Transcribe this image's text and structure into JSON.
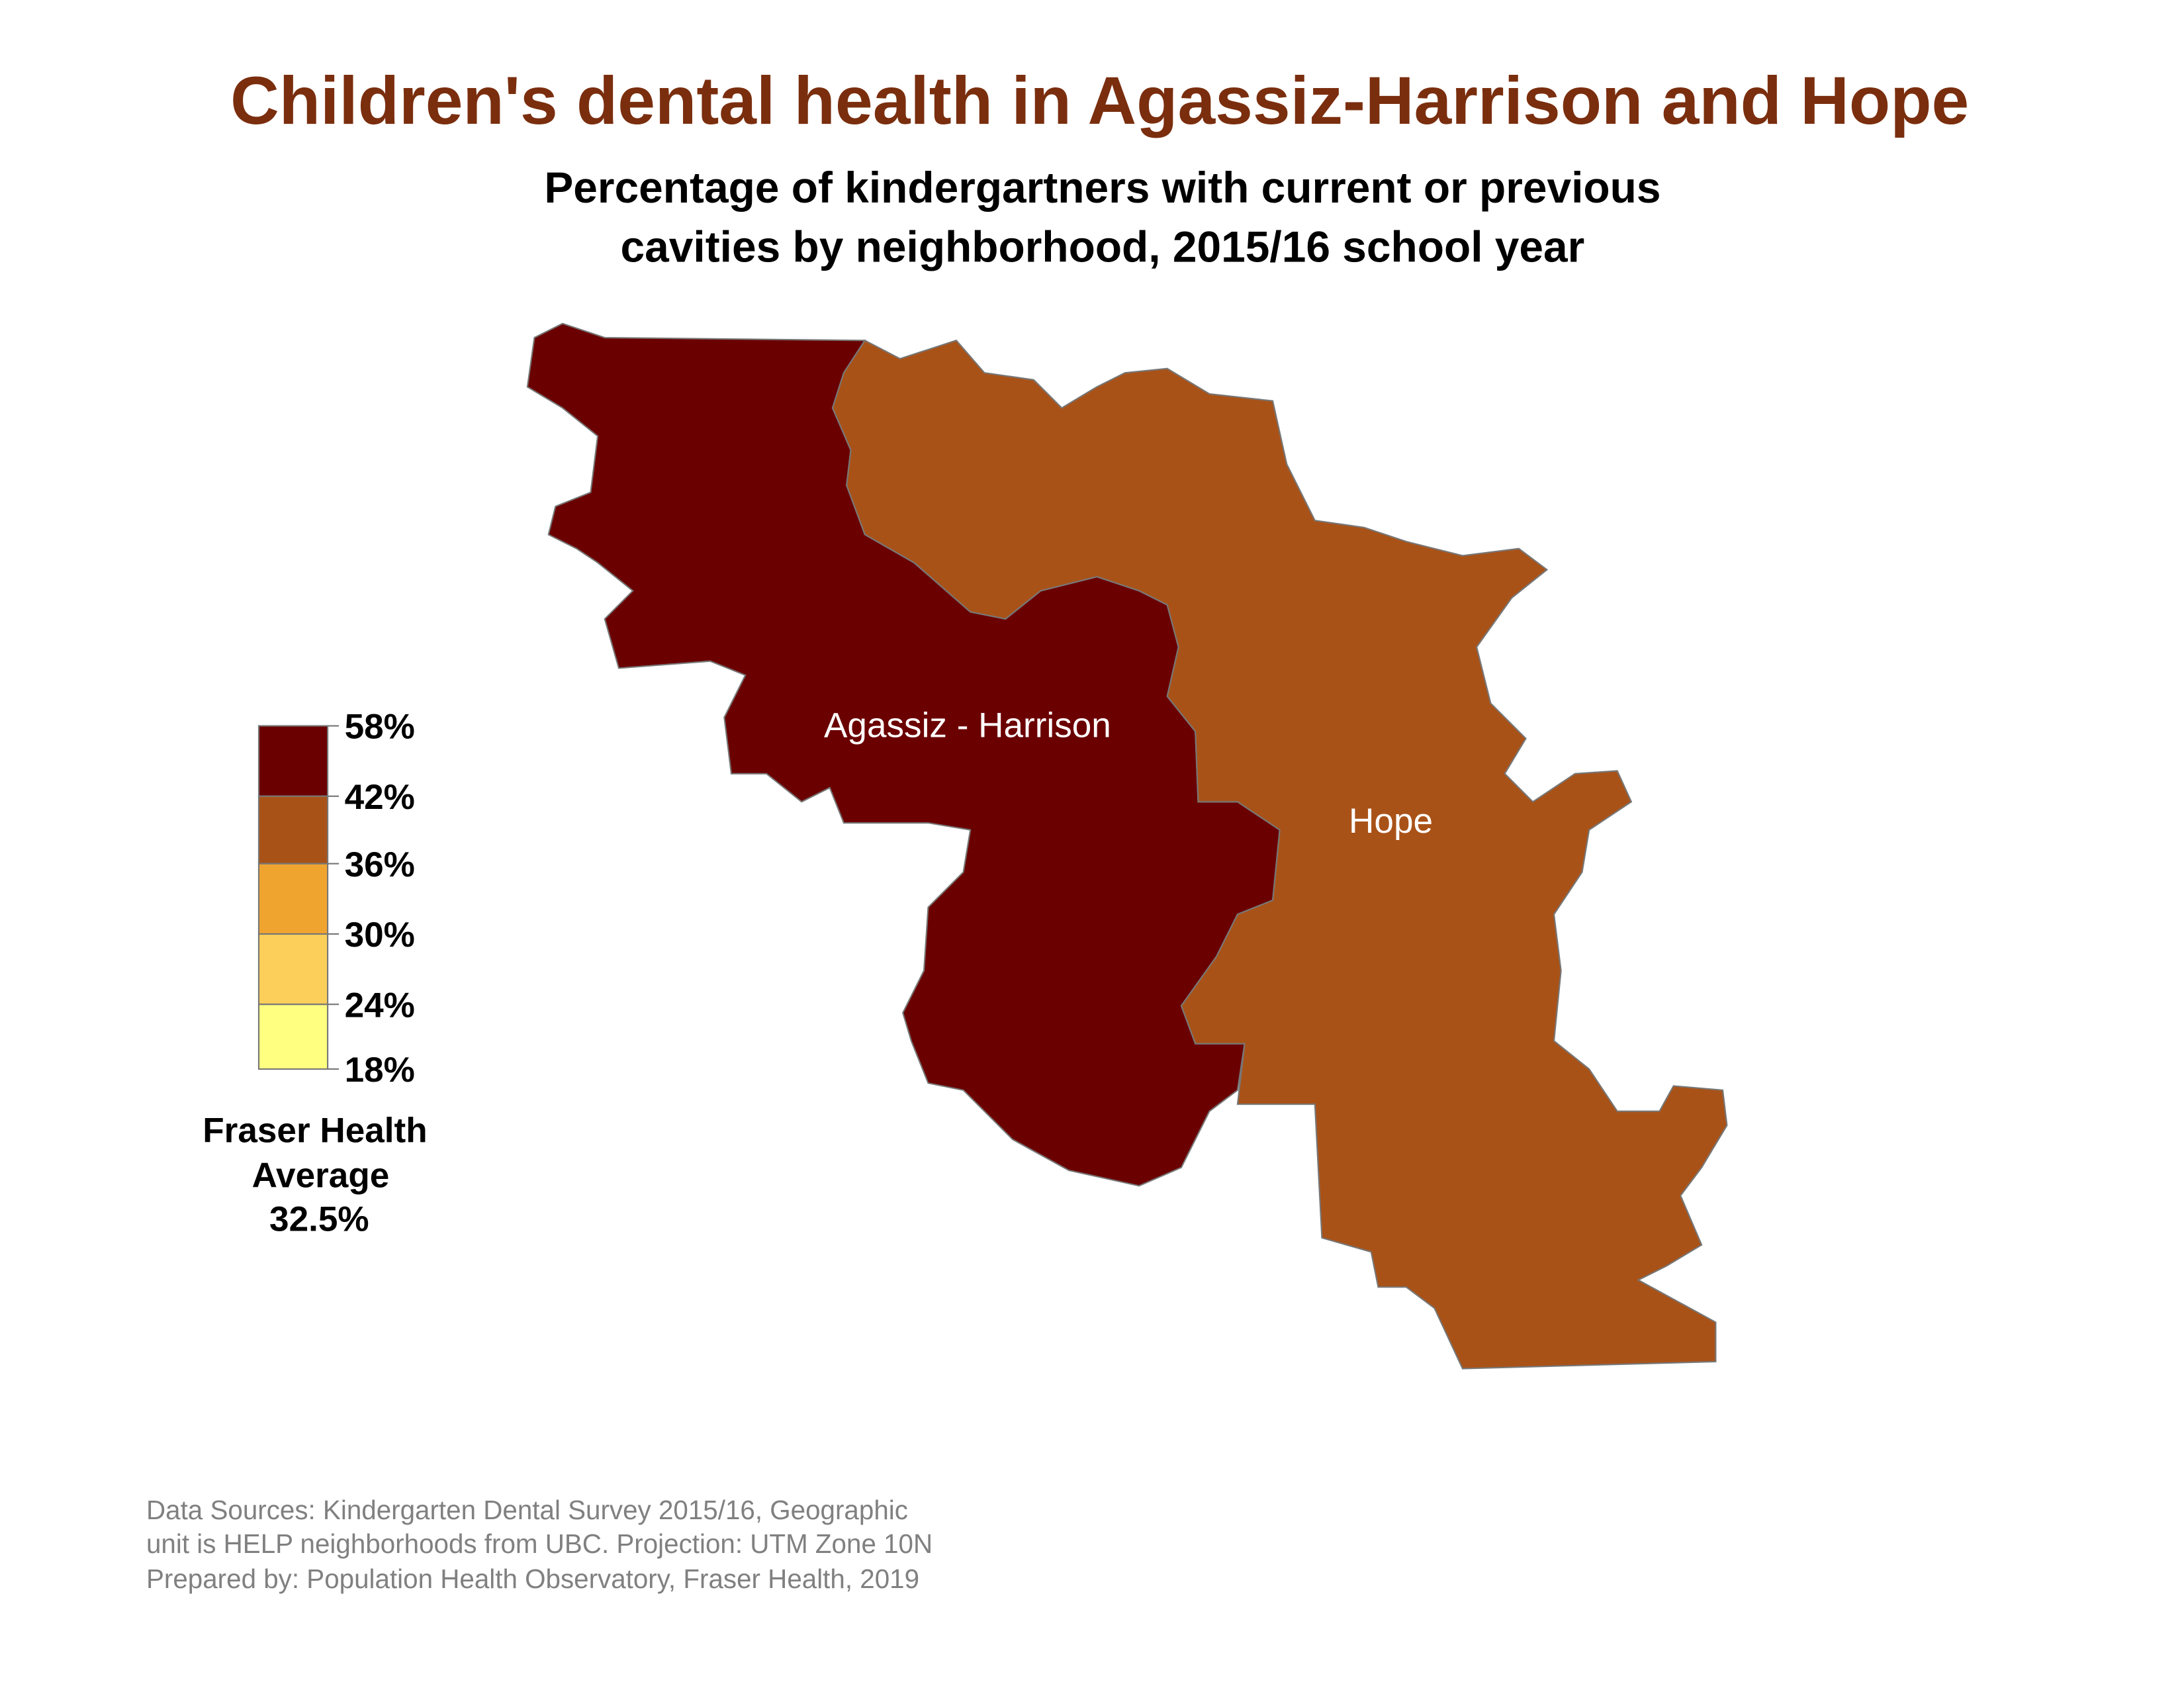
{
  "header": {
    "title": "Children's dental health in Agassiz-Harrison and Hope",
    "subtitle": [
      "Percentage of kindergartners with current or previous",
      "cavities by neighborhood, 2015/16 school year"
    ]
  },
  "regions": [
    {
      "label": "Agassiz - Harrison",
      "color": "#6b0000"
    },
    {
      "label": "Hope",
      "color": "#a95218"
    }
  ],
  "legend": {
    "labels": [
      "58%",
      "42%",
      "36%",
      "30%",
      "24%",
      "18%"
    ],
    "colors": [
      "#6b0000",
      "#a95218",
      "#f0a430",
      "#fbcf5a",
      "#ffff80"
    ],
    "average": [
      "Fraser Health",
      "Average",
      "32.5%"
    ]
  },
  "sources": [
    "Data Sources: Kindergarten Dental Survey 2015/16, Geographic",
    "unit is HELP neighborhoods from UBC. Projection: UTM Zone 10N",
    "Prepared by: Population Health Observatory, Fraser Health, 2019"
  ]
}
